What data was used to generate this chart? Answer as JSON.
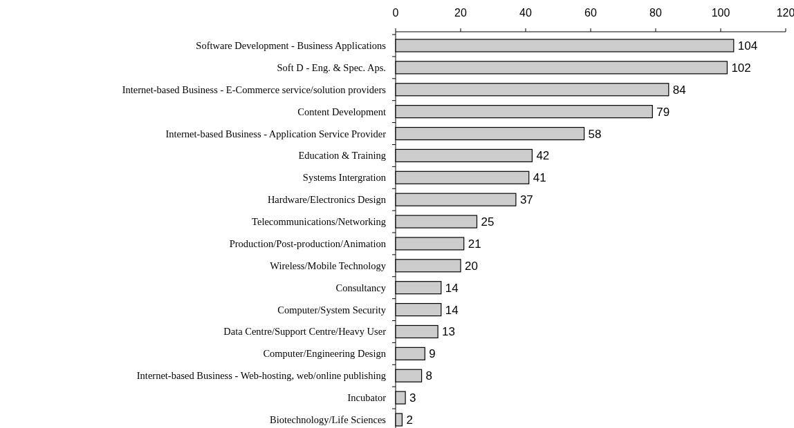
{
  "chart_data": {
    "type": "bar",
    "orientation": "horizontal",
    "categories": [
      "Software Development - Business Applications",
      "Soft D - Eng. & Spec. Aps.",
      "Internet-based Business - E-Commerce service/solution providers",
      "Content Development",
      "Internet-based Business - Application Service Provider",
      "Education & Training",
      "Systems Intergration",
      "Hardware/Electronics Design",
      "Telecommunications/Networking",
      "Production/Post-production/Animation",
      "Wireless/Mobile Technology",
      "Consultancy",
      "Computer/System Security",
      "Data Centre/Support Centre/Heavy User",
      "Computer/Engineering Design",
      "Internet-based Business - Web-hosting, web/online publishing",
      "Incubator",
      "Biotechnology/Life Sciences"
    ],
    "values": [
      104,
      102,
      84,
      79,
      58,
      42,
      41,
      37,
      25,
      21,
      20,
      14,
      14,
      13,
      9,
      8,
      3,
      2
    ],
    "color": "#cccccc",
    "xlim": [
      0,
      120
    ],
    "xticks": [
      0,
      20,
      40,
      60,
      80,
      100,
      120
    ],
    "data_labels": true,
    "grid": false
  }
}
